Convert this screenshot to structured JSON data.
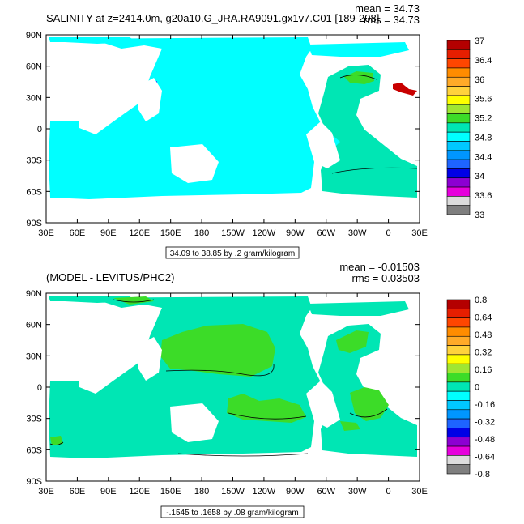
{
  "colors": {
    "ocean_top": "#00FFFF",
    "ocean_teal": "#00E6B4",
    "land": "#FFFFFF",
    "green": "#3CDC28",
    "red": "#C80000",
    "blue": "#1E64FF"
  },
  "chart_data": [
    {
      "type": "heatmap",
      "title": "SALINITY at z=2414.0m, g20a10.G_JRA.RA9091.gx1v7.C01 [189-208]",
      "stats": {
        "mean": "mean = 34.73",
        "rms": "rms = 34.73"
      },
      "x_ticks": [
        "30E",
        "60E",
        "90E",
        "120E",
        "150E",
        "180",
        "150W",
        "120W",
        "90W",
        "60W",
        "30W",
        "0",
        "30E"
      ],
      "y_ticks": [
        "90N",
        "60N",
        "30N",
        "0",
        "30S",
        "60S",
        "90S"
      ],
      "xlim": [
        30,
        390
      ],
      "ylim": [
        -90,
        90
      ],
      "colorbar_labels": [
        "37",
        "36.4",
        "36",
        "35.6",
        "35.2",
        "34.8",
        "34.4",
        "34",
        "33.6",
        "33"
      ],
      "colorbar_colors": [
        "#B40000",
        "#E61E00",
        "#FF4600",
        "#FF8C00",
        "#FFAA28",
        "#FFD23C",
        "#FFFF00",
        "#A0E632",
        "#3CDC28",
        "#00E6B4",
        "#00FFFF",
        "#00C8FF",
        "#0096FF",
        "#1E64FF",
        "#0000E6",
        "#8C00D2",
        "#E600DC",
        "#DCDCDC",
        "#7F7F7F"
      ],
      "subtitle": "34.09 to 38.85 by .2 gram/kilogram"
    },
    {
      "type": "heatmap",
      "title": "(MODEL - LEVITUS/PHC2)",
      "stats": {
        "mean": "mean = -0.01503",
        "rms": "rms = 0.03503"
      },
      "x_ticks": [
        "30E",
        "60E",
        "90E",
        "120E",
        "150E",
        "180",
        "150W",
        "120W",
        "90W",
        "60W",
        "30W",
        "0",
        "30E"
      ],
      "y_ticks": [
        "90N",
        "60N",
        "30N",
        "0",
        "30S",
        "60S",
        "90S"
      ],
      "xlim": [
        30,
        390
      ],
      "ylim": [
        -90,
        90
      ],
      "colorbar_labels": [
        "0.8",
        "0.64",
        "0.48",
        "0.32",
        "0.16",
        "0",
        "-0.16",
        "-0.32",
        "-0.48",
        "-0.64",
        "-0.8"
      ],
      "colorbar_colors": [
        "#B40000",
        "#E61E00",
        "#FF4600",
        "#FF8C00",
        "#FFAA28",
        "#FFD23C",
        "#FFFF00",
        "#A0E632",
        "#3CDC28",
        "#00E6B4",
        "#00FFFF",
        "#00C8FF",
        "#0096FF",
        "#1E64FF",
        "#0000E6",
        "#8C00D2",
        "#E600DC",
        "#DCDCDC",
        "#7F7F7F"
      ],
      "subtitle": "-.1545 to .1658 by .08 gram/kilogram"
    }
  ]
}
